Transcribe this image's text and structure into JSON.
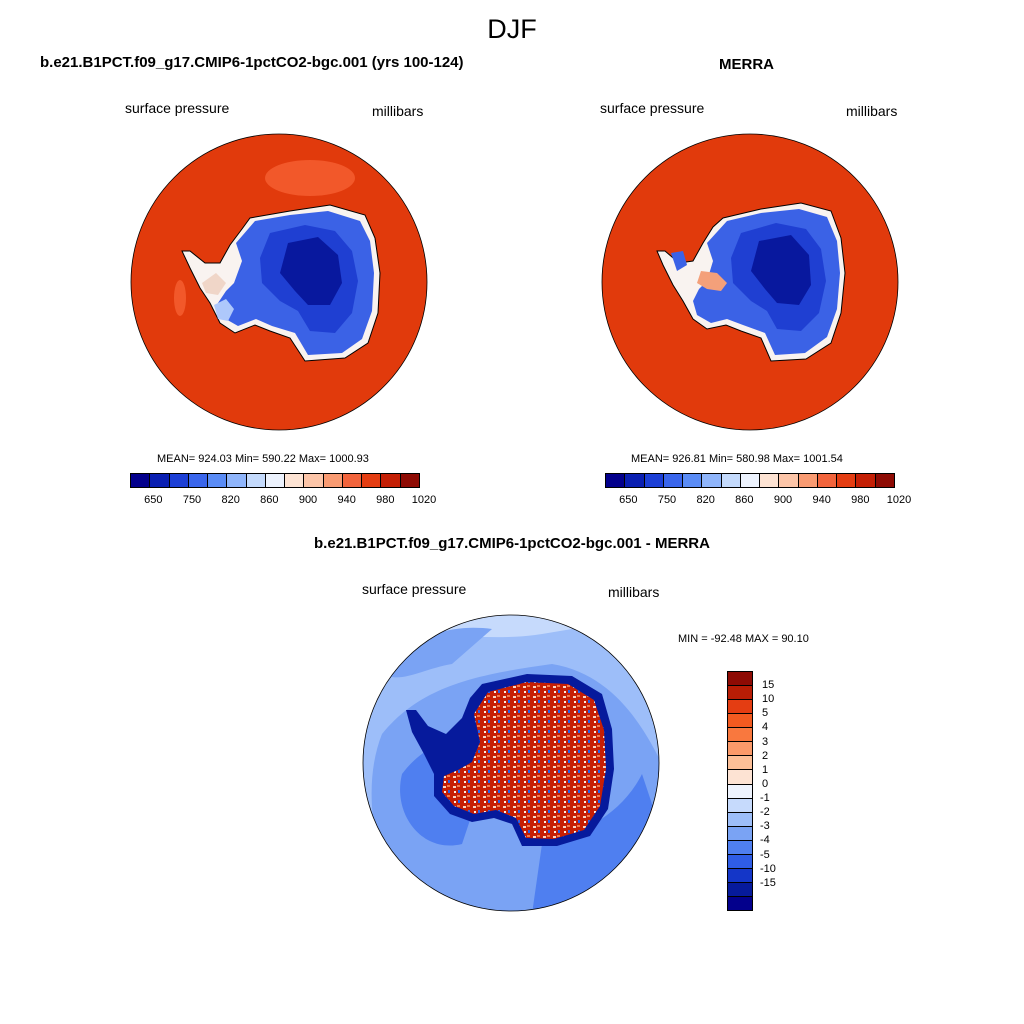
{
  "figure": {
    "title": "DJF"
  },
  "panels": [
    {
      "title": "b.e21.B1PCT.f09_g17.CMIP6-1pctCO2-bgc.001 (yrs 100-124)",
      "variable": "surface pressure",
      "units": "millibars",
      "stats": "MEAN= 924.03  Min= 590.22  Max= 1000.93"
    },
    {
      "title": "MERRA",
      "variable": "surface pressure",
      "units": "millibars",
      "stats": "MEAN= 926.81  Min= 580.98  Max= 1001.54"
    },
    {
      "title": "b.e21.B1PCT.f09_g17.CMIP6-1pctCO2-bgc.001 - MERRA",
      "variable": "surface pressure",
      "units": "millibars",
      "stats": "MIN = -92.48 MAX =  90.10"
    }
  ],
  "colorbar_abs": {
    "colors": [
      "#03008c",
      "#0a1fb2",
      "#1c3fd6",
      "#3a66ec",
      "#5a8cf6",
      "#8fb5fb",
      "#c4dafc",
      "#ecf2fd",
      "#fde3d3",
      "#fcc5a8",
      "#f99b72",
      "#f2643c",
      "#e43d12",
      "#c41f05",
      "#8e0b04"
    ],
    "labels": [
      "650",
      "750",
      "820",
      "860",
      "900",
      "940",
      "980",
      "1020"
    ]
  },
  "colorbar_diff": {
    "colors": [
      "#8e0b04",
      "#b81d05",
      "#e43d12",
      "#f25a20",
      "#f9783e",
      "#fb9a6a",
      "#fcbf97",
      "#fde3d3",
      "#eef3fd",
      "#c6dafc",
      "#9dbef9",
      "#7aa3f4",
      "#4f7ff0",
      "#2f5de6",
      "#1436c8",
      "#061a9c",
      "#03008c"
    ],
    "labels": [
      "15",
      "10",
      "5",
      "4",
      "3",
      "2",
      "1",
      "0",
      "-1",
      "-2",
      "-3",
      "-4",
      "-5",
      "-10",
      "-15"
    ]
  }
}
